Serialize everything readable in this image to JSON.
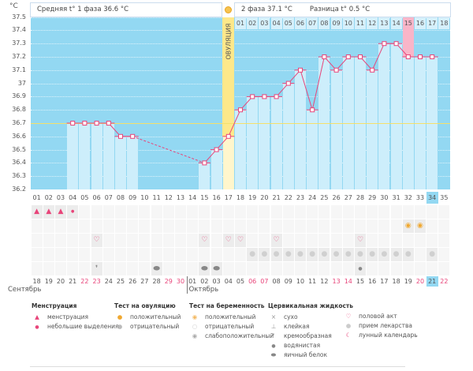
{
  "header": {
    "unit": "°C",
    "phase1": "Средняя t° 1 фаза 36.6 °C",
    "phase2": "2 фаза 37.1 °C",
    "diff": "Разница t° 0.5 °C",
    "ovulation_label": "ОВУЛЯЦИЯ"
  },
  "chart_data": {
    "type": "line",
    "ylim": [
      36.2,
      37.5
    ],
    "yticks": [
      "37.5",
      "37.4",
      "37.3",
      "37.2",
      "37.1",
      "37",
      "36.9",
      "36.8",
      "36.7",
      "36.6",
      "36.5",
      "36.4",
      "36.3",
      "36.2"
    ],
    "cycle_days": [
      "01",
      "02",
      "03",
      "04",
      "05",
      "06",
      "07",
      "08",
      "09",
      "10",
      "11",
      "12",
      "13",
      "14",
      "15",
      "16",
      "17",
      "18",
      "19",
      "20",
      "21",
      "22",
      "23",
      "24",
      "25",
      "26",
      "27",
      "28",
      "29",
      "30",
      "31",
      "32",
      "33",
      "34",
      "35"
    ],
    "temperatures": [
      null,
      null,
      null,
      36.7,
      36.7,
      36.7,
      36.7,
      36.6,
      36.6,
      null,
      null,
      null,
      null,
      null,
      36.4,
      36.5,
      36.6,
      36.8,
      36.9,
      36.9,
      36.9,
      37.0,
      37.1,
      36.8,
      37.2,
      37.1,
      37.2,
      37.2,
      37.1,
      37.3,
      37.3,
      37.2,
      37.2,
      37.2,
      null
    ],
    "cover_line": 36.7,
    "ovulation_day": 17,
    "phase2_labels": [
      "01",
      "02",
      "03",
      "04",
      "05",
      "06",
      "07",
      "08",
      "09",
      "10",
      "11",
      "12",
      "13",
      "14",
      "15",
      "16",
      "17",
      "18"
    ],
    "highlight_phase2_day": "15",
    "current_day": "34",
    "colors": {
      "background": "#93d8f2",
      "bar": "#cdeefb",
      "line": "#e8457a",
      "cover": "#f5e06a",
      "ovulation": "#fde88a",
      "highlight": "#f9b5c8"
    }
  },
  "calendar": {
    "dates": [
      "18",
      "19",
      "20",
      "21",
      "22",
      "23",
      "24",
      "25",
      "26",
      "27",
      "28",
      "29",
      "30",
      "01",
      "02",
      "03",
      "04",
      "05",
      "06",
      "07",
      "08",
      "09",
      "10",
      "11",
      "12",
      "13",
      "14",
      "15",
      "16",
      "17",
      "18",
      "19",
      "20",
      "21",
      "22"
    ],
    "weekend": [
      "22",
      "23",
      "29",
      "30",
      "06",
      "07",
      "13",
      "14",
      "20"
    ],
    "today": "21",
    "months": [
      "Сентябрь",
      "Октябрь"
    ]
  },
  "marks": {
    "menstruation": {
      "1": "heavy",
      "2": "heavy",
      "3": "heavy",
      "4": "light"
    },
    "ovulation_test": {
      "32": "positive",
      "33": "positive"
    },
    "sex": [
      6,
      15,
      17,
      18,
      21,
      28
    ],
    "pills": [
      19,
      20,
      21,
      22,
      23,
      24,
      25,
      26,
      27,
      28,
      29,
      30,
      31,
      32,
      34
    ],
    "cervical": {
      "6": "creamy",
      "11": "egg-white",
      "15": "egg-white",
      "16": "egg-white",
      "28": "watery"
    }
  },
  "legend": {
    "menstruation": {
      "title": "Менструация",
      "items": [
        "менструация",
        "небольшие выделения"
      ]
    },
    "ovulation_test": {
      "title": "Тест на овуляцию",
      "items": [
        "положительный",
        "отрицательный"
      ]
    },
    "pregnancy_test": {
      "title": "Тест на беременность",
      "items": [
        "положительный",
        "отрицательный",
        "слабоположительный"
      ]
    },
    "cervical": {
      "title": "Цервикальная жидкость",
      "items": [
        "сухо",
        "клейкая",
        "кремообразная",
        "водянистая",
        "яичный белок"
      ]
    },
    "other": {
      "items": [
        "половой акт",
        "прием лекарства",
        "лунный календарь"
      ]
    }
  }
}
